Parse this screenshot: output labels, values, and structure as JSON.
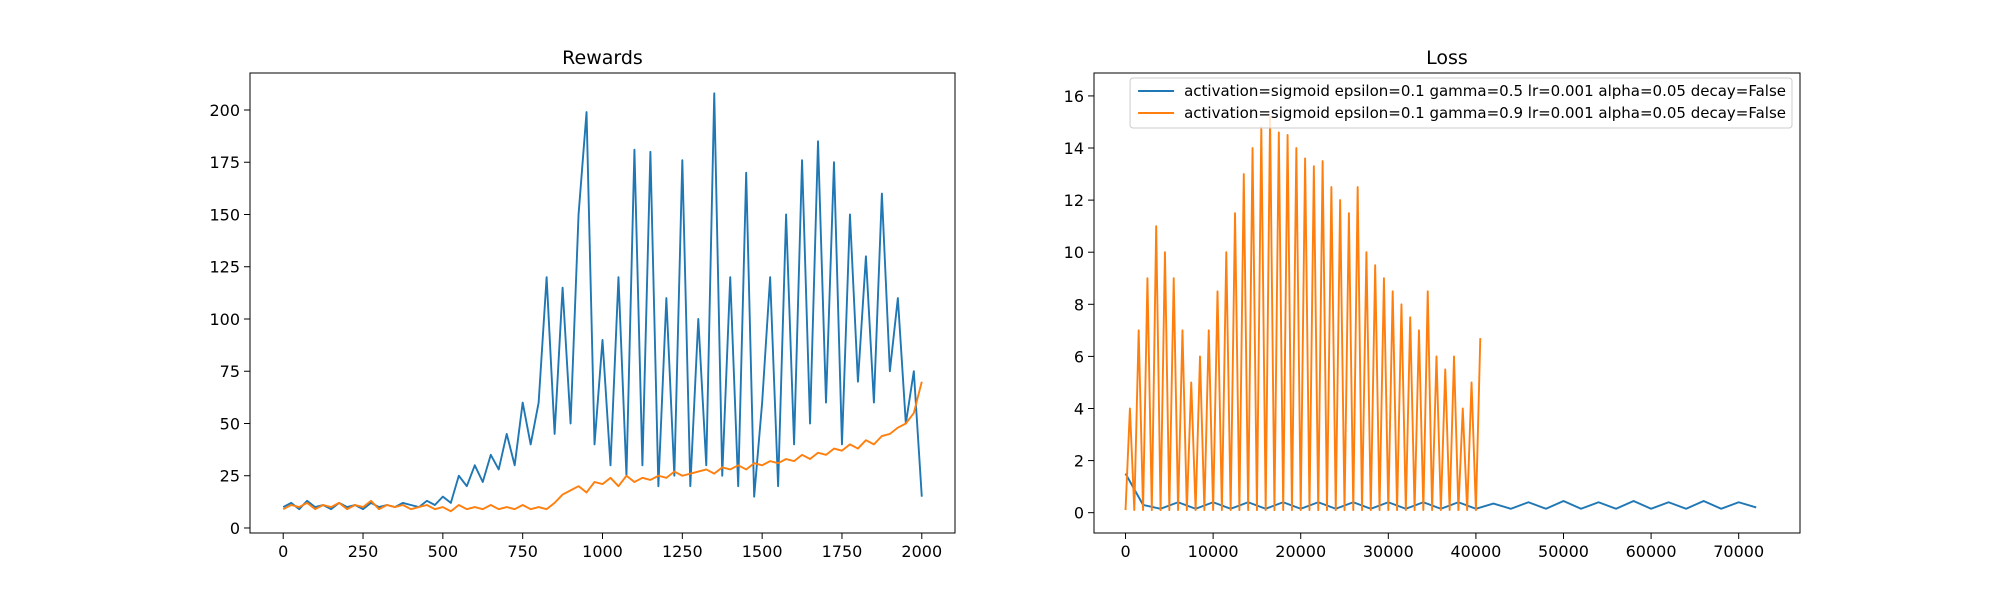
{
  "chart_data": [
    {
      "type": "line",
      "title": "Rewards",
      "xlim": [
        -104,
        2104
      ],
      "ylim": [
        -2.4,
        217.7
      ],
      "xticks": [
        0,
        250,
        500,
        750,
        1000,
        1250,
        1500,
        1750,
        2000
      ],
      "yticks": [
        0,
        25,
        50,
        75,
        100,
        125,
        150,
        175,
        200
      ],
      "x": [
        0,
        25,
        50,
        75,
        100,
        125,
        150,
        175,
        200,
        225,
        250,
        275,
        300,
        325,
        350,
        375,
        400,
        425,
        450,
        475,
        500,
        525,
        550,
        575,
        600,
        625,
        650,
        675,
        700,
        725,
        750,
        775,
        800,
        825,
        850,
        875,
        900,
        925,
        950,
        975,
        1000,
        1025,
        1050,
        1075,
        1100,
        1125,
        1150,
        1175,
        1200,
        1225,
        1250,
        1275,
        1300,
        1325,
        1350,
        1375,
        1400,
        1425,
        1450,
        1475,
        1500,
        1525,
        1550,
        1575,
        1600,
        1625,
        1650,
        1675,
        1700,
        1725,
        1750,
        1775,
        1800,
        1825,
        1850,
        1875,
        1900,
        1925,
        1950,
        1975,
        2000
      ],
      "series": [
        {
          "color": "#1f77b4",
          "values": [
            10,
            12,
            9,
            13,
            10,
            11,
            9,
            12,
            10,
            11,
            9,
            12,
            10,
            11,
            10,
            12,
            11,
            10,
            13,
            11,
            15,
            12,
            25,
            20,
            30,
            22,
            35,
            28,
            45,
            30,
            60,
            40,
            60,
            120,
            45,
            115,
            50,
            150,
            199,
            40,
            90,
            30,
            120,
            25,
            181,
            30,
            180,
            20,
            110,
            25,
            176,
            20,
            100,
            30,
            208,
            25,
            120,
            20,
            170,
            15,
            60,
            120,
            20,
            150,
            40,
            176,
            50,
            185,
            60,
            175,
            40,
            150,
            70,
            130,
            60,
            160,
            75,
            110,
            50,
            75,
            15
          ]
        },
        {
          "color": "#ff7f0e",
          "values": [
            9,
            11,
            10,
            12,
            9,
            11,
            10,
            12,
            9,
            11,
            10,
            13,
            9,
            11,
            10,
            11,
            9,
            10,
            11,
            9,
            10,
            8,
            11,
            9,
            10,
            9,
            11,
            9,
            10,
            9,
            11,
            9,
            10,
            9,
            12,
            16,
            18,
            20,
            17,
            22,
            21,
            24,
            20,
            25,
            22,
            24,
            23,
            25,
            24,
            27,
            25,
            26,
            27,
            28,
            26,
            29,
            28,
            30,
            28,
            31,
            30,
            32,
            31,
            33,
            32,
            35,
            33,
            36,
            35,
            38,
            37,
            40,
            38,
            42,
            40,
            44,
            45,
            48,
            50,
            55,
            70
          ]
        }
      ]
    },
    {
      "type": "line",
      "title": "Loss",
      "xlim": [
        -3600,
        77000
      ],
      "ylim": [
        -0.78,
        16.88
      ],
      "xticks": [
        0,
        10000,
        20000,
        30000,
        40000,
        50000,
        60000,
        70000
      ],
      "yticks": [
        0,
        2,
        4,
        6,
        8,
        10,
        12,
        14,
        16
      ],
      "legend": "upper right",
      "series": [
        {
          "name": "activation=sigmoid epsilon=0.1 gamma=0.5 lr=0.001 alpha=0.05 decay=False",
          "color": "#1f77b4",
          "x": [
            0,
            2000,
            4000,
            6000,
            8000,
            10000,
            12000,
            14000,
            16000,
            18000,
            20000,
            22000,
            24000,
            26000,
            28000,
            30000,
            32000,
            34000,
            36000,
            38000,
            40000,
            42000,
            44000,
            46000,
            48000,
            50000,
            52000,
            54000,
            56000,
            58000,
            60000,
            62000,
            64000,
            66000,
            68000,
            70000,
            72000
          ],
          "values": [
            1.5,
            0.3,
            0.15,
            0.4,
            0.15,
            0.4,
            0.15,
            0.4,
            0.15,
            0.4,
            0.15,
            0.4,
            0.15,
            0.4,
            0.15,
            0.4,
            0.15,
            0.4,
            0.15,
            0.4,
            0.15,
            0.35,
            0.15,
            0.4,
            0.15,
            0.45,
            0.15,
            0.4,
            0.15,
            0.45,
            0.15,
            0.4,
            0.15,
            0.45,
            0.15,
            0.4,
            0.2
          ]
        },
        {
          "name": "activation=sigmoid epsilon=0.1 gamma=0.9 lr=0.001 alpha=0.05 decay=False",
          "color": "#ff7f0e",
          "x": [
            0,
            500,
            1000,
            1500,
            2000,
            2500,
            3000,
            3500,
            4000,
            4500,
            5000,
            5500,
            6000,
            6500,
            7000,
            7500,
            8000,
            8500,
            9000,
            9500,
            10000,
            10500,
            11000,
            11500,
            12000,
            12500,
            13000,
            13500,
            14000,
            14500,
            15000,
            15500,
            16000,
            16500,
            17000,
            17500,
            18000,
            18500,
            19000,
            19500,
            20000,
            20500,
            21000,
            21500,
            22000,
            22500,
            23000,
            23500,
            24000,
            24500,
            25000,
            25500,
            26000,
            26500,
            27000,
            27500,
            28000,
            28500,
            29000,
            29500,
            30000,
            30500,
            31000,
            31500,
            32000,
            32500,
            33000,
            33500,
            34000,
            34500,
            35000,
            35500,
            36000,
            36500,
            37000,
            37500,
            38000,
            38500,
            39000,
            39500,
            40000,
            40500
          ],
          "values": [
            0.1,
            4,
            0.1,
            7,
            0.1,
            9,
            0.1,
            11,
            0.1,
            10,
            0.1,
            9,
            0.1,
            7,
            0.1,
            5,
            0.1,
            6,
            0.1,
            7,
            0.1,
            8.5,
            0.1,
            10,
            0.1,
            11.5,
            0.1,
            13,
            0.1,
            14,
            0.1,
            14.8,
            0.1,
            15.2,
            0.1,
            14.6,
            0.1,
            14.5,
            0.1,
            14,
            0.1,
            13.6,
            0.1,
            13.3,
            0.1,
            13.5,
            0.1,
            12.5,
            0.1,
            12,
            0.1,
            11.5,
            0.1,
            12.5,
            0.1,
            10,
            0.1,
            9.5,
            0.1,
            9,
            0.1,
            8.5,
            0.1,
            8,
            0.1,
            7.5,
            0.1,
            7,
            0.1,
            8.5,
            0.1,
            6,
            0.1,
            5.5,
            0.1,
            6,
            0.1,
            4,
            0.1,
            5,
            0.1,
            6.7
          ]
        }
      ]
    }
  ]
}
